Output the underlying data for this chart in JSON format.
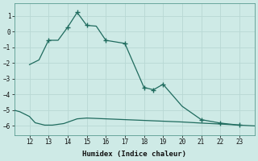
{
  "xlabel": "Humidex (Indice chaleur)",
  "background_color": "#ceeae6",
  "line_color": "#1f6b5e",
  "grid_color": "#b8d8d4",
  "x_ticks": [
    12,
    13,
    14,
    15,
    16,
    17,
    18,
    19,
    20,
    21,
    22,
    23
  ],
  "y_ticks": [
    -6,
    -5,
    -4,
    -3,
    -2,
    -1,
    0,
    1
  ],
  "ylim": [
    -6.6,
    1.8
  ],
  "xlim": [
    11.2,
    23.8
  ],
  "curve1_x": [
    11.2,
    11.5,
    12.0,
    12.3,
    12.8,
    13.2,
    13.8,
    14.5,
    15.0,
    16.0,
    17.0,
    18.0,
    19.0,
    20.0,
    21.0,
    22.0,
    23.0,
    23.8
  ],
  "curve1_y": [
    -5.0,
    -5.1,
    -5.4,
    -5.8,
    -5.95,
    -5.95,
    -5.85,
    -5.55,
    -5.5,
    -5.55,
    -5.6,
    -5.65,
    -5.7,
    -5.75,
    -5.82,
    -5.88,
    -5.95,
    -6.0
  ],
  "curve2_x": [
    12.0,
    12.5,
    13.0,
    13.5,
    14.0,
    14.5,
    15.0,
    15.5,
    16.0,
    17.0,
    18.0,
    18.5,
    19.0,
    20.0,
    21.0,
    22.0,
    23.0
  ],
  "curve2_y": [
    -2.1,
    -1.8,
    -0.55,
    -0.55,
    0.28,
    1.22,
    0.4,
    0.35,
    -0.55,
    -0.75,
    -3.55,
    -3.7,
    -3.35,
    -4.75,
    -5.6,
    -5.82,
    -5.95
  ],
  "marker_x": [
    13.0,
    14.0,
    14.5,
    15.0,
    16.0,
    17.0,
    18.0,
    18.5,
    19.0,
    21.0,
    22.0,
    23.0
  ],
  "marker_y": [
    -0.55,
    0.28,
    1.22,
    0.4,
    -0.55,
    -0.75,
    -3.55,
    -3.7,
    -3.35,
    -5.6,
    -5.82,
    -5.95
  ],
  "tick_fontsize": 5.5,
  "xlabel_fontsize": 6.5
}
